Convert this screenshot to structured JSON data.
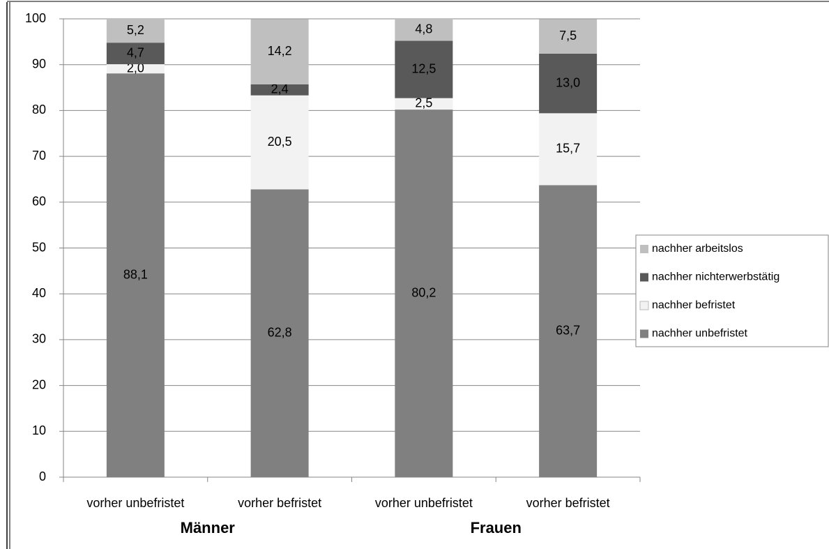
{
  "chart_data": {
    "type": "stacked_bar",
    "categories": [
      "vorher unbefristet",
      "vorher befristet",
      "vorher unbefristet",
      "vorher befristet"
    ],
    "groups": [
      "Männer",
      "Frauen"
    ],
    "series": [
      {
        "name": "nachher unbefristet",
        "color": "#808080",
        "values": [
          88.1,
          62.8,
          80.2,
          63.7
        ],
        "value_labels": [
          "88,1",
          "62,8",
          "80,2",
          "63,7"
        ]
      },
      {
        "name": "nachher befristet",
        "color": "#f2f2f2",
        "values": [
          2.0,
          20.5,
          2.5,
          15.7
        ],
        "value_labels": [
          "2,0",
          "20,5",
          "2,5",
          "15,7"
        ]
      },
      {
        "name": "nachher nichterwerbstätig",
        "color": "#595959",
        "values": [
          4.7,
          2.4,
          12.5,
          13.0
        ],
        "value_labels": [
          "4,7",
          "2,4",
          "12,5",
          "13,0"
        ]
      },
      {
        "name": "nachher arbeitslos",
        "color": "#bfbfbf",
        "values": [
          5.2,
          14.2,
          4.8,
          7.5
        ],
        "value_labels": [
          "5,2",
          "14,2",
          "4,8",
          "7,5"
        ]
      }
    ],
    "ylim": [
      0,
      100
    ],
    "yticks": [
      0,
      10,
      20,
      30,
      40,
      50,
      60,
      70,
      80,
      90,
      100
    ],
    "grid": true,
    "legend": "right"
  }
}
